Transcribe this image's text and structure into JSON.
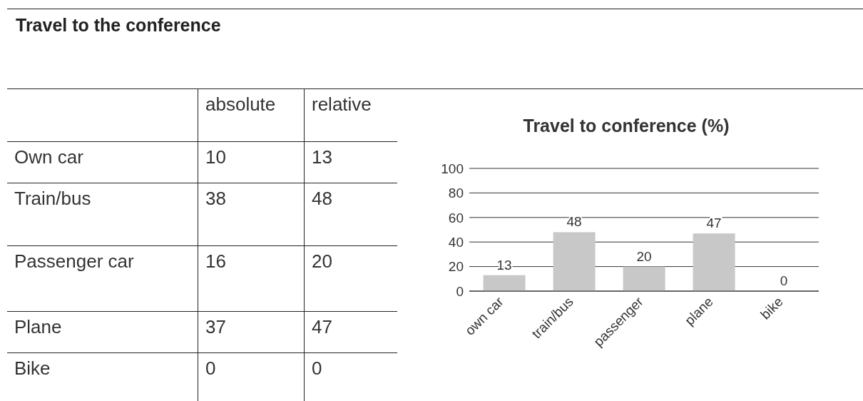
{
  "chart_data": [
    {
      "type": "other",
      "title": "Travel to the conference",
      "categories": [
        "Own car",
        "Train/bus",
        "Passenger car",
        "Plane",
        "Bike"
      ],
      "series": [
        {
          "name": "absolute",
          "values": [
            10,
            38,
            16,
            37,
            0
          ]
        },
        {
          "name": "relative",
          "values": [
            13,
            48,
            20,
            47,
            0
          ]
        }
      ],
      "data_labels": true
    },
    {
      "type": "bar",
      "title": "Travel to conference (%)",
      "categories": [
        "own car",
        "train/bus",
        "passenger",
        "plane",
        "bike"
      ],
      "values": [
        13,
        48,
        20,
        47,
        0
      ],
      "color": "#c8c8c8",
      "ylim": [
        0,
        100
      ],
      "yticks": [
        0,
        20,
        40,
        60,
        80,
        100
      ],
      "grid": "y",
      "data_labels": true
    }
  ]
}
